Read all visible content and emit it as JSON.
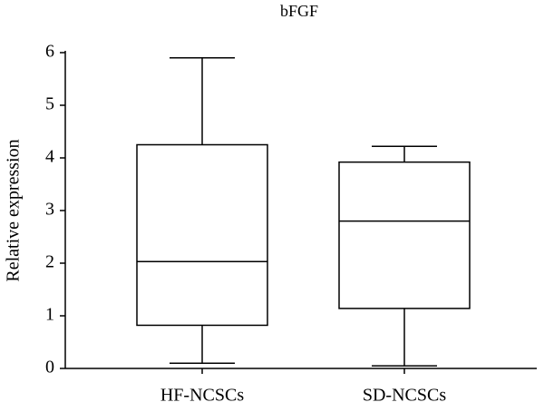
{
  "chart_data": {
    "type": "box",
    "title": "bFGF",
    "y_label": "Relative expression",
    "categories": [
      "HF-NCSCs",
      "SD-NCSCs"
    ],
    "values": [
      {
        "min": 0.1,
        "q1": 0.82,
        "median": 2.03,
        "q3": 4.25,
        "max": 5.9
      },
      {
        "min": 0.05,
        "q1": 1.14,
        "median": 2.8,
        "q3": 3.92,
        "max": 4.22
      }
    ],
    "color": "#000000",
    "ylim": [
      0,
      6
    ],
    "yticks": [
      0,
      1,
      2,
      3,
      4,
      5,
      6
    ]
  }
}
